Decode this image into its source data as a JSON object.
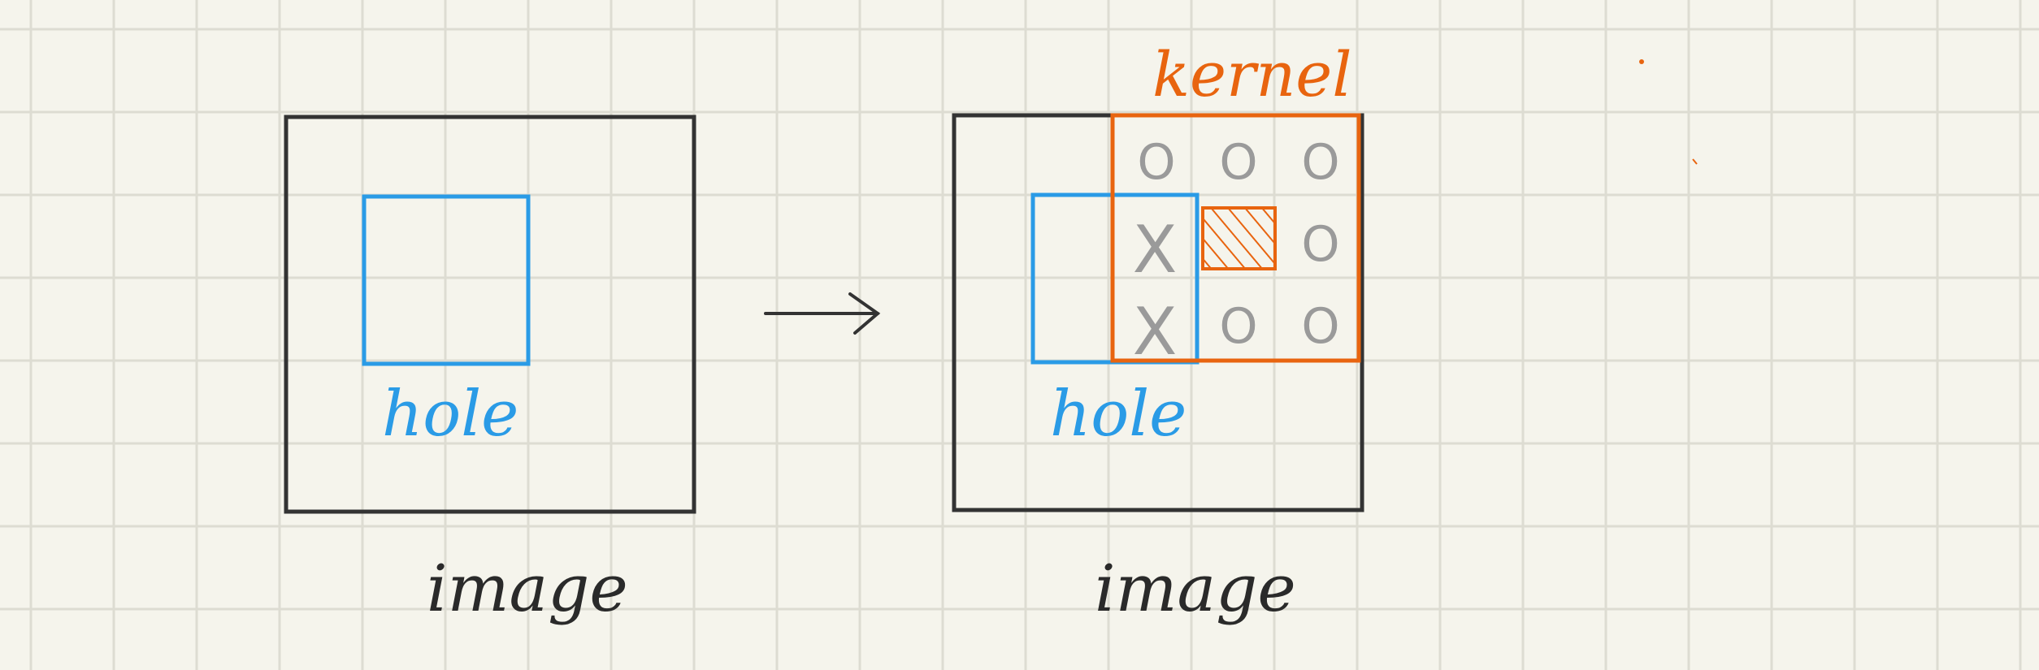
{
  "labels": {
    "left_image": "image",
    "right_image": "image",
    "left_hole": "hole",
    "right_hole": "hole",
    "kernel": "kernel"
  },
  "kernel_cells": [
    [
      "O",
      "O",
      "O"
    ],
    [
      "X",
      "",
      "O"
    ],
    [
      "X",
      "O",
      "O"
    ]
  ],
  "colors": {
    "background": "#f5f4ec",
    "grid": "#dddcd2",
    "image_border": "#333333",
    "hole": "#2a9be6",
    "kernel": "#e8640f",
    "cell_mark": "#9a9a9a"
  }
}
